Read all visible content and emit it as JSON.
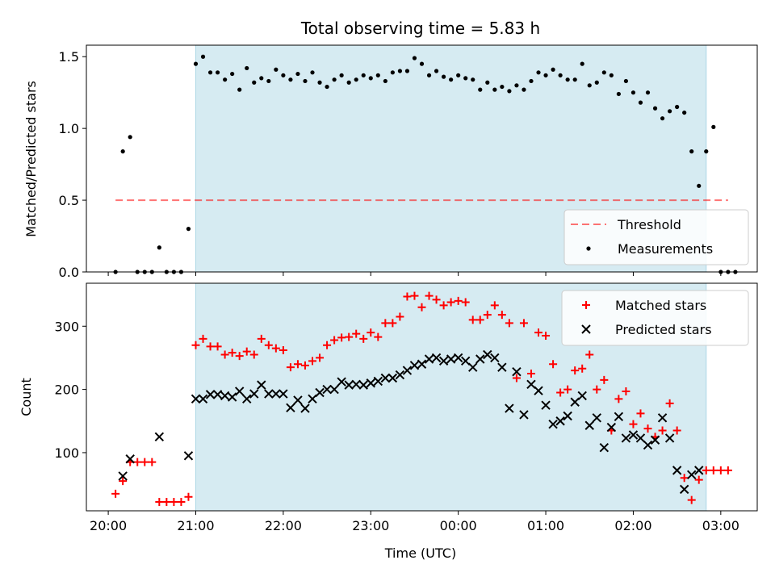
{
  "colors": {
    "observing_span": "#add8e6",
    "threshold": "#ff0000",
    "measurements": "#000000",
    "matched": "#ff0000",
    "predicted": "#000000"
  },
  "chart_data": [
    {
      "type": "scatter",
      "title": "Total observing time = 5.83 h",
      "ylabel": "Matched/Predicted stars",
      "xlabel": "",
      "xlim": [
        "19:45",
        "03:25"
      ],
      "ylim": [
        0,
        1.58
      ],
      "x_ticks": [
        "20:00",
        "21:00",
        "22:00",
        "23:00",
        "00:00",
        "01:00",
        "02:00",
        "03:00"
      ],
      "y_ticks": [
        "0.0",
        "0.5",
        "1.0",
        "1.5"
      ],
      "shaded_span": [
        "21:00",
        "02:50"
      ],
      "threshold": {
        "name": "Threshold",
        "value": 0.5,
        "x_range": [
          "20:05",
          "03:05"
        ]
      },
      "legend": {
        "placement": "lower-right",
        "entries": [
          "Threshold",
          "Measurements"
        ]
      },
      "series": [
        {
          "name": "Measurements",
          "points": [
            [
              "20:05",
              0.0
            ],
            [
              "20:10",
              0.84
            ],
            [
              "20:15",
              0.94
            ],
            [
              "20:20",
              0.0
            ],
            [
              "20:25",
              0.0
            ],
            [
              "20:30",
              0.0
            ],
            [
              "20:35",
              0.17
            ],
            [
              "20:40",
              0.0
            ],
            [
              "20:45",
              0.0
            ],
            [
              "20:50",
              0.0
            ],
            [
              "20:55",
              0.3
            ],
            [
              "21:00",
              1.45
            ],
            [
              "21:05",
              1.5
            ],
            [
              "21:10",
              1.39
            ],
            [
              "21:15",
              1.39
            ],
            [
              "21:20",
              1.34
            ],
            [
              "21:25",
              1.38
            ],
            [
              "21:30",
              1.27
            ],
            [
              "21:35",
              1.42
            ],
            [
              "21:40",
              1.32
            ],
            [
              "21:45",
              1.35
            ],
            [
              "21:50",
              1.33
            ],
            [
              "21:55",
              1.41
            ],
            [
              "22:00",
              1.37
            ],
            [
              "22:05",
              1.34
            ],
            [
              "22:10",
              1.38
            ],
            [
              "22:15",
              1.33
            ],
            [
              "22:20",
              1.39
            ],
            [
              "22:25",
              1.32
            ],
            [
              "22:30",
              1.29
            ],
            [
              "22:35",
              1.34
            ],
            [
              "22:40",
              1.37
            ],
            [
              "22:45",
              1.32
            ],
            [
              "22:50",
              1.34
            ],
            [
              "22:55",
              1.37
            ],
            [
              "23:00",
              1.35
            ],
            [
              "23:05",
              1.37
            ],
            [
              "23:10",
              1.33
            ],
            [
              "23:15",
              1.39
            ],
            [
              "23:20",
              1.4
            ],
            [
              "23:25",
              1.4
            ],
            [
              "23:30",
              1.49
            ],
            [
              "23:35",
              1.45
            ],
            [
              "23:40",
              1.37
            ],
            [
              "23:45",
              1.4
            ],
            [
              "23:50",
              1.36
            ],
            [
              "23:55",
              1.34
            ],
            [
              "00:00",
              1.37
            ],
            [
              "00:05",
              1.35
            ],
            [
              "00:10",
              1.34
            ],
            [
              "00:15",
              1.27
            ],
            [
              "00:20",
              1.32
            ],
            [
              "00:25",
              1.27
            ],
            [
              "00:30",
              1.29
            ],
            [
              "00:35",
              1.26
            ],
            [
              "00:40",
              1.3
            ],
            [
              "00:45",
              1.27
            ],
            [
              "00:50",
              1.33
            ],
            [
              "00:55",
              1.39
            ],
            [
              "01:00",
              1.37
            ],
            [
              "01:05",
              1.41
            ],
            [
              "01:10",
              1.37
            ],
            [
              "01:15",
              1.34
            ],
            [
              "01:20",
              1.34
            ],
            [
              "01:25",
              1.45
            ],
            [
              "01:30",
              1.3
            ],
            [
              "01:35",
              1.32
            ],
            [
              "01:40",
              1.39
            ],
            [
              "01:45",
              1.37
            ],
            [
              "01:50",
              1.24
            ],
            [
              "01:55",
              1.33
            ],
            [
              "02:00",
              1.25
            ],
            [
              "02:05",
              1.18
            ],
            [
              "02:10",
              1.25
            ],
            [
              "02:15",
              1.14
            ],
            [
              "02:20",
              1.07
            ],
            [
              "02:25",
              1.12
            ],
            [
              "02:30",
              1.15
            ],
            [
              "02:35",
              1.11
            ],
            [
              "02:40",
              0.84
            ],
            [
              "02:45",
              0.6
            ],
            [
              "02:50",
              0.84
            ],
            [
              "02:55",
              1.01
            ],
            [
              "03:00",
              0.0
            ],
            [
              "03:05",
              0.0
            ],
            [
              "03:10",
              0.0
            ]
          ]
        }
      ]
    },
    {
      "type": "scatter",
      "title": "",
      "ylabel": "Count",
      "xlabel": "Time (UTC)",
      "xlim": [
        "19:45",
        "03:25"
      ],
      "ylim": [
        8,
        368
      ],
      "x_ticks": [
        "20:00",
        "21:00",
        "22:00",
        "23:00",
        "00:00",
        "01:00",
        "02:00",
        "03:00"
      ],
      "y_ticks": [
        "100",
        "200",
        "300"
      ],
      "shaded_span": [
        "21:00",
        "02:50"
      ],
      "legend": {
        "placement": "upper-right",
        "entries": [
          "Matched stars",
          "Predicted stars"
        ]
      },
      "series": [
        {
          "name": "Matched stars",
          "marker": "plus",
          "points": [
            [
              "20:05",
              35
            ],
            [
              "20:10",
              55
            ],
            [
              "20:15",
              85
            ],
            [
              "20:20",
              85
            ],
            [
              "20:25",
              85
            ],
            [
              "20:30",
              85
            ],
            [
              "20:35",
              22
            ],
            [
              "20:40",
              22
            ],
            [
              "20:45",
              22
            ],
            [
              "20:50",
              22
            ],
            [
              "20:55",
              30
            ],
            [
              "21:00",
              270
            ],
            [
              "21:05",
              280
            ],
            [
              "21:10",
              268
            ],
            [
              "21:15",
              268
            ],
            [
              "21:20",
              255
            ],
            [
              "21:25",
              258
            ],
            [
              "21:30",
              253
            ],
            [
              "21:35",
              260
            ],
            [
              "21:40",
              255
            ],
            [
              "21:45",
              280
            ],
            [
              "21:50",
              270
            ],
            [
              "21:55",
              265
            ],
            [
              "22:00",
              262
            ],
            [
              "22:05",
              235
            ],
            [
              "22:10",
              240
            ],
            [
              "22:15",
              238
            ],
            [
              "22:20",
              245
            ],
            [
              "22:25",
              250
            ],
            [
              "22:30",
              270
            ],
            [
              "22:35",
              278
            ],
            [
              "22:40",
              282
            ],
            [
              "22:45",
              283
            ],
            [
              "22:50",
              288
            ],
            [
              "22:55",
              280
            ],
            [
              "23:00",
              290
            ],
            [
              "23:05",
              283
            ],
            [
              "23:10",
              305
            ],
            [
              "23:15",
              305
            ],
            [
              "23:20",
              315
            ],
            [
              "23:25",
              347
            ],
            [
              "23:30",
              348
            ],
            [
              "23:35",
              330
            ],
            [
              "23:40",
              348
            ],
            [
              "23:45",
              342
            ],
            [
              "23:50",
              333
            ],
            [
              "23:55",
              338
            ],
            [
              "00:00",
              340
            ],
            [
              "00:05",
              338
            ],
            [
              "00:10",
              310
            ],
            [
              "00:15",
              310
            ],
            [
              "00:20",
              318
            ],
            [
              "00:25",
              333
            ],
            [
              "00:30",
              318
            ],
            [
              "00:35",
              305
            ],
            [
              "00:40",
              218
            ],
            [
              "00:45",
              305
            ],
            [
              "00:50",
              225
            ],
            [
              "00:55",
              290
            ],
            [
              "01:00",
              285
            ],
            [
              "01:05",
              240
            ],
            [
              "01:10",
              195
            ],
            [
              "01:15",
              200
            ],
            [
              "01:20",
              230
            ],
            [
              "01:25",
              233
            ],
            [
              "01:30",
              255
            ],
            [
              "01:35",
              200
            ],
            [
              "01:40",
              215
            ],
            [
              "01:45",
              135
            ],
            [
              "01:50",
              185
            ],
            [
              "01:55",
              197
            ],
            [
              "02:00",
              145
            ],
            [
              "02:05",
              162
            ],
            [
              "02:10",
              138
            ],
            [
              "02:15",
              125
            ],
            [
              "02:20",
              135
            ],
            [
              "02:25",
              178
            ],
            [
              "02:30",
              135
            ],
            [
              "02:35",
              60
            ],
            [
              "02:40",
              25
            ],
            [
              "02:45",
              57
            ],
            [
              "02:50",
              72
            ],
            [
              "02:55",
              72
            ],
            [
              "03:00",
              72
            ],
            [
              "03:05",
              72
            ]
          ]
        },
        {
          "name": "Predicted stars",
          "marker": "x",
          "points": [
            [
              "20:10",
              63
            ],
            [
              "20:15",
              90
            ],
            [
              "20:35",
              125
            ],
            [
              "20:55",
              95
            ],
            [
              "21:00",
              185
            ],
            [
              "21:05",
              185
            ],
            [
              "21:10",
              192
            ],
            [
              "21:15",
              192
            ],
            [
              "21:20",
              190
            ],
            [
              "21:25",
              188
            ],
            [
              "21:30",
              197
            ],
            [
              "21:35",
              185
            ],
            [
              "21:40",
              193
            ],
            [
              "21:45",
              207
            ],
            [
              "21:50",
              193
            ],
            [
              "21:55",
              193
            ],
            [
              "22:00",
              193
            ],
            [
              "22:05",
              171
            ],
            [
              "22:10",
              183
            ],
            [
              "22:15",
              170
            ],
            [
              "22:20",
              185
            ],
            [
              "22:25",
              195
            ],
            [
              "22:30",
              200
            ],
            [
              "22:35",
              200
            ],
            [
              "22:40",
              212
            ],
            [
              "22:45",
              207
            ],
            [
              "22:50",
              208
            ],
            [
              "22:55",
              207
            ],
            [
              "23:00",
              210
            ],
            [
              "23:05",
              213
            ],
            [
              "23:10",
              218
            ],
            [
              "23:15",
              218
            ],
            [
              "23:20",
              223
            ],
            [
              "23:25",
              230
            ],
            [
              "23:30",
              238
            ],
            [
              "23:35",
              240
            ],
            [
              "23:40",
              248
            ],
            [
              "23:45",
              250
            ],
            [
              "23:50",
              245
            ],
            [
              "23:55",
              248
            ],
            [
              "00:00",
              250
            ],
            [
              "00:05",
              245
            ],
            [
              "00:10",
              235
            ],
            [
              "00:15",
              248
            ],
            [
              "00:20",
              255
            ],
            [
              "00:25",
              250
            ],
            [
              "00:30",
              235
            ],
            [
              "00:35",
              170
            ],
            [
              "00:40",
              228
            ],
            [
              "00:45",
              160
            ],
            [
              "00:50",
              208
            ],
            [
              "00:55",
              198
            ],
            [
              "01:00",
              175
            ],
            [
              "01:05",
              145
            ],
            [
              "01:10",
              150
            ],
            [
              "01:15",
              158
            ],
            [
              "01:20",
              180
            ],
            [
              "01:25",
              190
            ],
            [
              "01:30",
              143
            ],
            [
              "01:35",
              155
            ],
            [
              "01:40",
              108
            ],
            [
              "01:45",
              140
            ],
            [
              "01:50",
              157
            ],
            [
              "01:55",
              123
            ],
            [
              "02:00",
              128
            ],
            [
              "02:05",
              123
            ],
            [
              "02:10",
              112
            ],
            [
              "02:15",
              120
            ],
            [
              "02:20",
              155
            ],
            [
              "02:25",
              123
            ],
            [
              "02:30",
              72
            ],
            [
              "02:35",
              42
            ],
            [
              "02:40",
              65
            ],
            [
              "02:45",
              72
            ]
          ]
        }
      ]
    }
  ]
}
